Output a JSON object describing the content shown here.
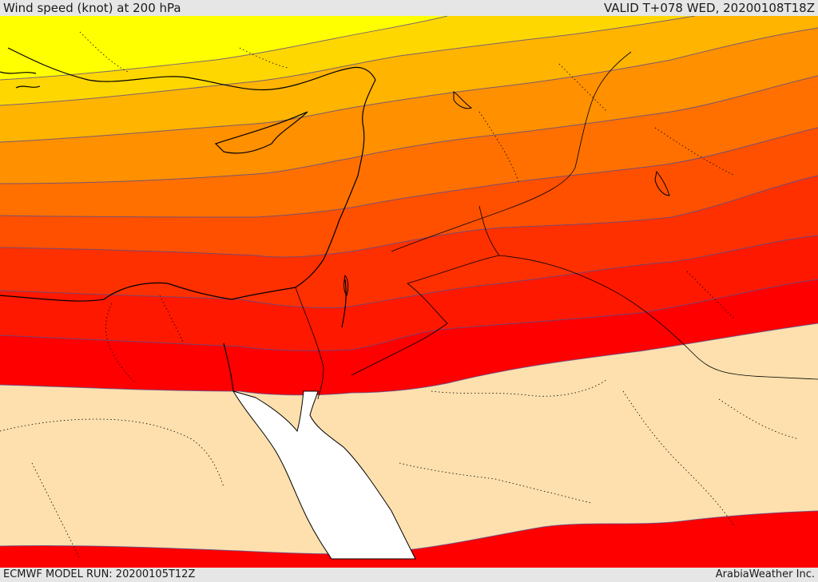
{
  "header": {
    "title": "Wind speed (knot) at 200 hPa",
    "valid": "VALID T+078 WED, 20200108T18Z"
  },
  "footer": {
    "model_run": "ECMWF MODEL RUN: 20200105T12Z",
    "credit": "ArabiaWeather Inc."
  },
  "colors": {
    "band_1": "#ffff00",
    "band_2": "#ffd700",
    "band_3": "#ffb400",
    "band_4": "#ff9000",
    "band_5": "#ff7000",
    "band_6": "#ff5000",
    "band_7": "#ff3000",
    "band_8": "#ff1800",
    "band_9": "#ff0000",
    "calm": "#fde0ad",
    "red_sea": "#ffffff",
    "coast": "#000000",
    "contour": "#5a4a8a"
  }
}
